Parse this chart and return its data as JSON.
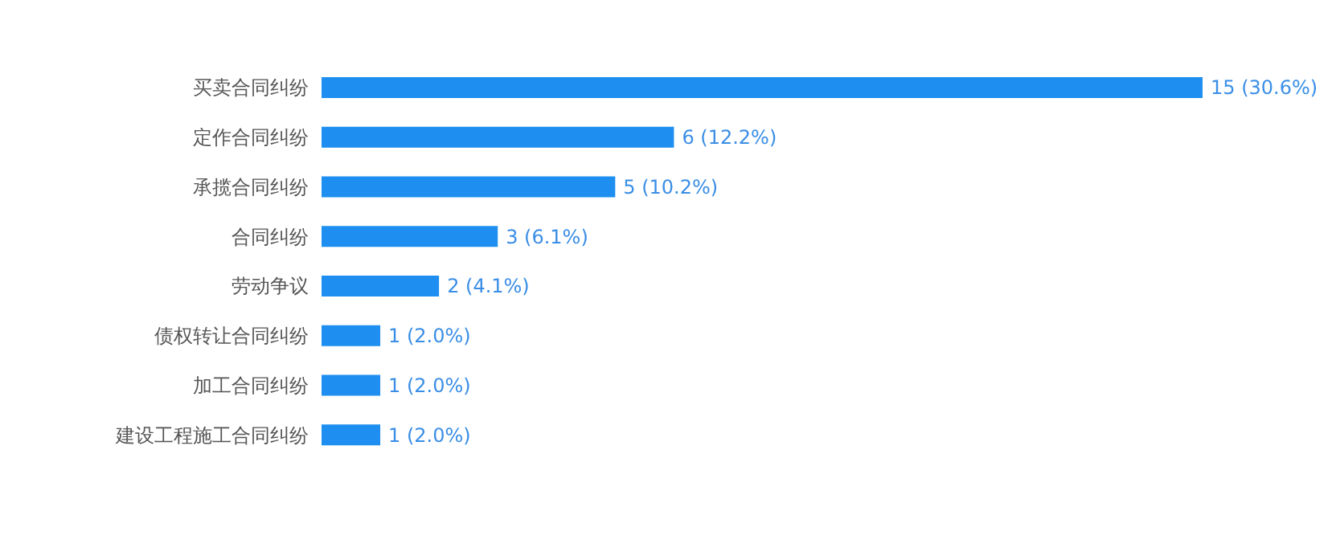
{
  "chart_data": {
    "type": "bar",
    "orientation": "horizontal",
    "categories": [
      "买卖合同纠纷",
      "定作合同纠纷",
      "承揽合同纠纷",
      "合同纠纷",
      "劳动争议",
      "债权转让合同纠纷",
      "加工合同纠纷",
      "建设工程施工合同纠纷"
    ],
    "values": [
      15,
      6,
      5,
      3,
      2,
      1,
      1,
      1
    ],
    "value_labels": [
      "15 (30.6%)",
      "6 (12.2%)",
      "5 (10.2%)",
      "3 (6.1%)",
      "2 (4.1%)",
      "1 (2.0%)",
      "1 (2.0%)",
      "1 (2.0%)"
    ],
    "color": "#1e8ff0",
    "grid": false,
    "legend": false
  }
}
